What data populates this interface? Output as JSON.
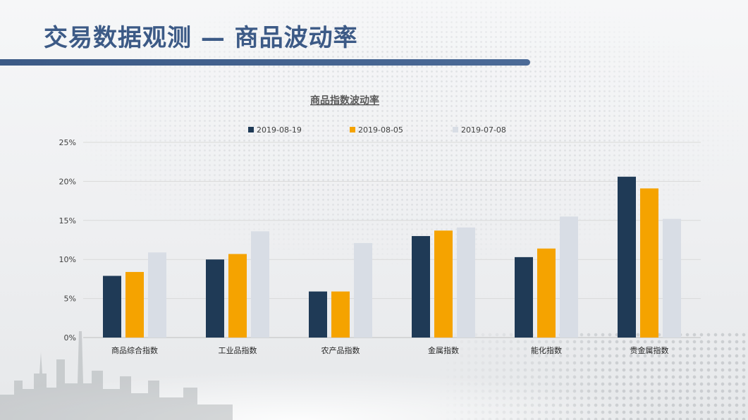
{
  "page": {
    "title": "交易数据观测 — 商品波动率"
  },
  "colors": {
    "title": "#3c5a86",
    "series": [
      "#1f3a56",
      "#f5a300",
      "#d8dde5"
    ]
  },
  "chart_data": {
    "type": "bar",
    "title": "商品指数波动率",
    "legend_position": "top",
    "grid": true,
    "categories": [
      "商品综合指数",
      "工业品指数",
      "农产品指数",
      "金属指数",
      "能化指数",
      "贵金属指数"
    ],
    "series": [
      {
        "name": "2019-08-19",
        "values": [
          7.9,
          10.0,
          5.9,
          13.0,
          10.3,
          20.6
        ]
      },
      {
        "name": "2019-08-05",
        "values": [
          8.4,
          10.7,
          5.9,
          13.7,
          11.4,
          19.1
        ]
      },
      {
        "name": "2019-07-08",
        "values": [
          10.9,
          13.6,
          12.1,
          14.1,
          15.5,
          15.2
        ]
      }
    ],
    "ylim": [
      0,
      25
    ],
    "yticks": [
      0,
      5,
      10,
      15,
      20,
      25
    ],
    "ytick_labels": [
      "0%",
      "5%",
      "10%",
      "15%",
      "20%",
      "25%"
    ],
    "xlabel": "",
    "ylabel": ""
  }
}
